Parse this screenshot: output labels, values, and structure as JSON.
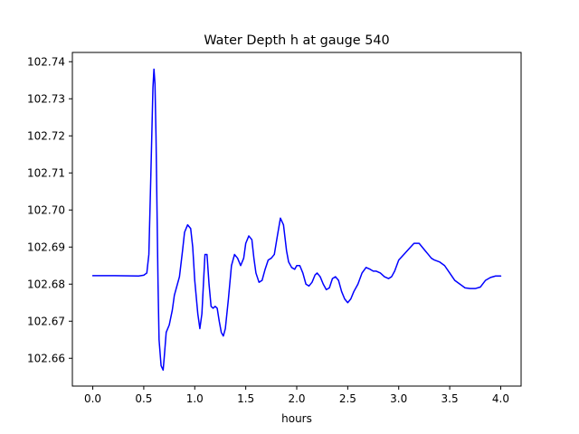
{
  "chart_data": {
    "type": "line",
    "title": "Water Depth h at gauge 540",
    "xlabel": "hours",
    "ylabel": "",
    "xlim": [
      -0.2,
      4.2
    ],
    "ylim": [
      102.6525,
      102.7425
    ],
    "xticks": [
      0.0,
      0.5,
      1.0,
      1.5,
      2.0,
      2.5,
      3.0,
      3.5,
      4.0
    ],
    "xtick_labels": [
      "0.0",
      "0.5",
      "1.0",
      "1.5",
      "2.0",
      "2.5",
      "3.0",
      "3.5",
      "4.0"
    ],
    "yticks": [
      102.66,
      102.67,
      102.68,
      102.69,
      102.7,
      102.71,
      102.72,
      102.73,
      102.74
    ],
    "ytick_labels": [
      "102.66",
      "102.67",
      "102.68",
      "102.69",
      "102.70",
      "102.71",
      "102.72",
      "102.73",
      "102.74"
    ],
    "grid": false,
    "line_color": "#0000ff",
    "series": [
      {
        "x": [
          0.0,
          0.2,
          0.45,
          0.5,
          0.53,
          0.55,
          0.57,
          0.59,
          0.6,
          0.61,
          0.62,
          0.63,
          0.64,
          0.65,
          0.67,
          0.69,
          0.7,
          0.72,
          0.75,
          0.78,
          0.8,
          0.85,
          0.88,
          0.9,
          0.93,
          0.96,
          0.98,
          1.0,
          1.03,
          1.05,
          1.07,
          1.1,
          1.12,
          1.14,
          1.16,
          1.18,
          1.2,
          1.22,
          1.24,
          1.26,
          1.28,
          1.3,
          1.33,
          1.36,
          1.39,
          1.42,
          1.45,
          1.48,
          1.5,
          1.53,
          1.56,
          1.58,
          1.6,
          1.63,
          1.66,
          1.69,
          1.72,
          1.75,
          1.78,
          1.81,
          1.84,
          1.87,
          1.9,
          1.92,
          1.95,
          1.98,
          2.0,
          2.03,
          2.06,
          2.09,
          2.12,
          2.15,
          2.18,
          2.2,
          2.23,
          2.26,
          2.29,
          2.32,
          2.35,
          2.38,
          2.41,
          2.44,
          2.47,
          2.5,
          2.53,
          2.56,
          2.6,
          2.64,
          2.68,
          2.72,
          2.75,
          2.78,
          2.82,
          2.86,
          2.9,
          2.93,
          2.96,
          3.0,
          3.05,
          3.1,
          3.15,
          3.2,
          3.23,
          3.26,
          3.29,
          3.32,
          3.35,
          3.4,
          3.45,
          3.5,
          3.55,
          3.6,
          3.65,
          3.7,
          3.75,
          3.8,
          3.85,
          3.9,
          3.95,
          4.0
        ],
        "y": [
          102.6823,
          102.6823,
          102.6822,
          102.6824,
          102.683,
          102.688,
          102.71,
          102.733,
          102.738,
          102.734,
          102.72,
          102.7,
          102.68,
          102.665,
          102.658,
          102.6568,
          102.66,
          102.667,
          102.669,
          102.673,
          102.677,
          102.682,
          102.689,
          102.694,
          102.696,
          102.695,
          102.69,
          102.681,
          102.672,
          102.668,
          102.672,
          102.688,
          102.688,
          102.68,
          102.674,
          102.6735,
          102.674,
          102.6735,
          102.67,
          102.667,
          102.666,
          102.668,
          102.676,
          102.685,
          102.688,
          102.687,
          102.685,
          102.687,
          102.691,
          102.693,
          102.692,
          102.687,
          102.683,
          102.6805,
          102.681,
          102.684,
          102.6865,
          102.687,
          102.688,
          102.693,
          102.6978,
          102.696,
          102.689,
          102.686,
          102.6845,
          102.684,
          102.685,
          102.685,
          102.683,
          102.68,
          102.6795,
          102.6805,
          102.6825,
          102.683,
          102.682,
          102.68,
          102.6785,
          102.679,
          102.6815,
          102.682,
          102.681,
          102.678,
          102.676,
          102.675,
          102.676,
          102.678,
          102.68,
          102.683,
          102.6845,
          102.684,
          102.6835,
          102.6835,
          102.683,
          102.682,
          102.6815,
          102.682,
          102.6835,
          102.6865,
          102.688,
          102.6895,
          102.691,
          102.691,
          102.69,
          102.689,
          102.688,
          102.687,
          102.6865,
          102.686,
          102.685,
          102.683,
          102.681,
          102.68,
          102.679,
          102.6788,
          102.6788,
          102.6792,
          102.681,
          102.6818,
          102.6822,
          102.6822
        ]
      }
    ]
  }
}
